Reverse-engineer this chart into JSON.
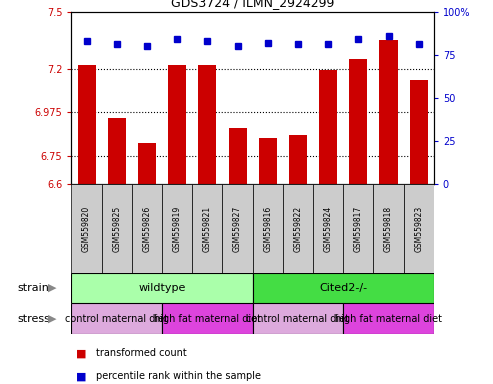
{
  "title": "GDS3724 / ILMN_2924299",
  "samples": [
    "GSM559820",
    "GSM559825",
    "GSM559826",
    "GSM559819",
    "GSM559821",
    "GSM559827",
    "GSM559816",
    "GSM559822",
    "GSM559824",
    "GSM559817",
    "GSM559818",
    "GSM559823"
  ],
  "red_values": [
    7.22,
    6.945,
    6.815,
    7.22,
    7.22,
    6.895,
    6.84,
    6.855,
    7.195,
    7.255,
    7.35,
    7.145
  ],
  "blue_values": [
    83,
    81,
    80,
    84,
    83,
    80,
    82,
    81,
    81,
    84,
    86,
    81
  ],
  "ylim_left": [
    6.6,
    7.5
  ],
  "ylim_right": [
    0,
    100
  ],
  "yticks_left": [
    6.6,
    6.75,
    6.975,
    7.2,
    7.5
  ],
  "yticks_right": [
    0,
    25,
    50,
    75,
    100
  ],
  "ytick_labels_left": [
    "6.6",
    "6.75",
    "6.975",
    "7.2",
    "7.5"
  ],
  "ytick_labels_right": [
    "0",
    "25",
    "50",
    "75",
    "100%"
  ],
  "strain_groups": [
    {
      "label": "wildtype",
      "start": 0,
      "end": 6,
      "color": "#aaffaa"
    },
    {
      "label": "Cited2-/-",
      "start": 6,
      "end": 12,
      "color": "#44dd44"
    }
  ],
  "stress_groups": [
    {
      "label": "control maternal diet",
      "start": 0,
      "end": 3,
      "color": "#ddaadd"
    },
    {
      "label": "high fat maternal diet",
      "start": 3,
      "end": 6,
      "color": "#dd44dd"
    },
    {
      "label": "control maternal diet",
      "start": 6,
      "end": 9,
      "color": "#ddaadd"
    },
    {
      "label": "high fat maternal diet",
      "start": 9,
      "end": 12,
      "color": "#dd44dd"
    }
  ],
  "bar_color": "#CC0000",
  "dot_color": "#0000CC",
  "bar_width": 0.6,
  "background_color": "#ffffff",
  "plot_bg_color": "#ffffff",
  "sample_box_color": "#cccccc",
  "strain_label": "strain",
  "stress_label": "stress",
  "grid_lines": [
    6.75,
    6.975,
    7.2
  ]
}
